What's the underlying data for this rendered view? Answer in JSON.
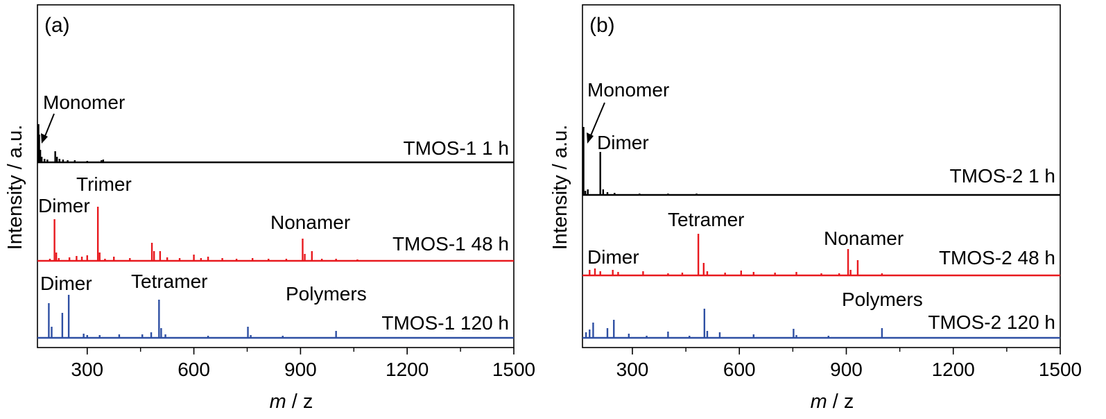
{
  "chart_data": [
    {
      "type": "line",
      "panel_label": "(a)",
      "xlabel_italic": "m",
      "xlabel_rest": " / z",
      "ylabel": "Intensity / a.u.",
      "xlim": [
        160,
        1500
      ],
      "xticks": [
        300,
        600,
        900,
        1200,
        1500
      ],
      "series": [
        {
          "name": "TMOS-1 1 h",
          "color": "#000000",
          "peaks": [
            [
              163,
              55
            ],
            [
              165,
              40
            ],
            [
              168,
              18
            ],
            [
              172,
              8
            ],
            [
              180,
              5
            ],
            [
              188,
              4
            ],
            [
              210,
              16
            ],
            [
              215,
              8
            ],
            [
              222,
              5
            ],
            [
              232,
              4
            ],
            [
              245,
              3
            ],
            [
              265,
              3
            ],
            [
              300,
              2
            ],
            [
              340,
              3
            ],
            [
              345,
              4
            ]
          ]
        },
        {
          "name": "TMOS-1 48 h",
          "color": "#e8191e",
          "peaks": [
            [
              195,
              3
            ],
            [
              208,
              60
            ],
            [
              213,
              12
            ],
            [
              220,
              4
            ],
            [
              250,
              5
            ],
            [
              270,
              7
            ],
            [
              285,
              6
            ],
            [
              300,
              8
            ],
            [
              330,
              78
            ],
            [
              335,
              12
            ],
            [
              350,
              3
            ],
            [
              375,
              6
            ],
            [
              420,
              4
            ],
            [
              482,
              26
            ],
            [
              488,
              14
            ],
            [
              505,
              14
            ],
            [
              525,
              5
            ],
            [
              560,
              4
            ],
            [
              600,
              9
            ],
            [
              620,
              4
            ],
            [
              640,
              6
            ],
            [
              680,
              4
            ],
            [
              720,
              3
            ],
            [
              765,
              4
            ],
            [
              810,
              3
            ],
            [
              860,
              3
            ],
            [
              906,
              32
            ],
            [
              912,
              10
            ],
            [
              932,
              14
            ],
            [
              960,
              3
            ],
            [
              1000,
              3
            ],
            [
              1060,
              2
            ]
          ]
        },
        {
          "name": "TMOS-1 120 h",
          "color": "#2e4fa3",
          "peaks": [
            [
              192,
              50
            ],
            [
              200,
              16
            ],
            [
              230,
              36
            ],
            [
              248,
              62
            ],
            [
              290,
              6
            ],
            [
              300,
              4
            ],
            [
              335,
              4
            ],
            [
              390,
              5
            ],
            [
              455,
              5
            ],
            [
              480,
              8
            ],
            [
              502,
              55
            ],
            [
              508,
              14
            ],
            [
              520,
              5
            ],
            [
              640,
              3
            ],
            [
              752,
              16
            ],
            [
              760,
              4
            ],
            [
              850,
              3
            ],
            [
              1000,
              10
            ]
          ]
        }
      ],
      "annotations": [
        "Monomer",
        "Dimer",
        "Trimer",
        "Nonamer",
        "Dimer",
        "Tetramer",
        "Polymers"
      ]
    },
    {
      "type": "line",
      "panel_label": "(b)",
      "xlabel_italic": "m",
      "xlabel_rest": " / z",
      "ylabel": "Intensity / a.u.",
      "xlim": [
        160,
        1500
      ],
      "xticks": [
        300,
        600,
        900,
        1200,
        1500
      ],
      "series": [
        {
          "name": "TMOS-2 1 h",
          "color": "#000000",
          "peaks": [
            [
              163,
              98
            ],
            [
              168,
              6
            ],
            [
              175,
              8
            ],
            [
              210,
              62
            ],
            [
              218,
              8
            ],
            [
              230,
              4
            ],
            [
              250,
              3
            ],
            [
              320,
              2
            ],
            [
              400,
              2
            ],
            [
              480,
              2
            ]
          ]
        },
        {
          "name": "TMOS-2 48 h",
          "color": "#e8191e",
          "peaks": [
            [
              180,
              8
            ],
            [
              195,
              10
            ],
            [
              210,
              6
            ],
            [
              245,
              8
            ],
            [
              260,
              5
            ],
            [
              330,
              6
            ],
            [
              400,
              3
            ],
            [
              440,
              4
            ],
            [
              485,
              60
            ],
            [
              500,
              18
            ],
            [
              510,
              6
            ],
            [
              560,
              4
            ],
            [
              605,
              7
            ],
            [
              640,
              5
            ],
            [
              700,
              4
            ],
            [
              760,
              5
            ],
            [
              830,
              3
            ],
            [
              880,
              3
            ],
            [
              905,
              38
            ],
            [
              912,
              8
            ],
            [
              932,
              22
            ],
            [
              1000,
              3
            ]
          ]
        },
        {
          "name": "TMOS-2 120 h",
          "color": "#2e4fa3",
          "peaks": [
            [
              170,
              8
            ],
            [
              180,
              12
            ],
            [
              190,
              22
            ],
            [
              230,
              14
            ],
            [
              248,
              26
            ],
            [
              290,
              6
            ],
            [
              340,
              3
            ],
            [
              400,
              9
            ],
            [
              460,
              3
            ],
            [
              502,
              42
            ],
            [
              510,
              10
            ],
            [
              545,
              8
            ],
            [
              640,
              5
            ],
            [
              752,
              13
            ],
            [
              760,
              4
            ],
            [
              850,
              3
            ],
            [
              1000,
              14
            ]
          ]
        }
      ],
      "annotations": [
        "Monomer",
        "Dimer",
        "Tetramer",
        "Dimer",
        "Nonamer",
        "Polymers"
      ]
    }
  ]
}
